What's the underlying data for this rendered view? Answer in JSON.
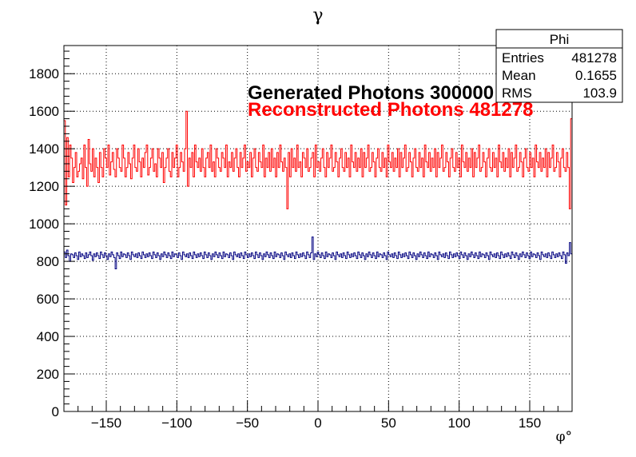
{
  "chart_data": {
    "type": "histogram",
    "title": "γ",
    "xlabel": "φ°",
    "ylabel": "",
    "xlim": [
      -180,
      180
    ],
    "ylim": [
      0,
      1950
    ],
    "xticks": [
      -150,
      -100,
      -50,
      0,
      50,
      100,
      150
    ],
    "yticks": [
      0,
      200,
      400,
      600,
      800,
      1000,
      1200,
      1400,
      1600,
      1800
    ],
    "grid": true,
    "series": [
      {
        "name": "Reconstructed Photons 481278",
        "color": "#ff0000",
        "bin_range": [
          -180,
          180
        ],
        "values": [
          1550,
          1100,
          1460,
          1250,
          1420,
          1350,
          1220,
          1300,
          1380,
          1250,
          1280,
          1320,
          1350,
          1240,
          1420,
          1300,
          1200,
          1450,
          1320,
          1280,
          1400,
          1250,
          1350,
          1300,
          1220,
          1380,
          1300,
          1250,
          1400,
          1350,
          1300,
          1420,
          1260,
          1330,
          1380,
          1290,
          1250,
          1400,
          1350,
          1300,
          1280,
          1420,
          1350,
          1250,
          1300,
          1380,
          1320,
          1240,
          1350,
          1420,
          1300,
          1280,
          1400,
          1330,
          1250,
          1350,
          1300,
          1380,
          1420,
          1260,
          1300,
          1350,
          1400,
          1280,
          1320,
          1250,
          1400,
          1350,
          1300,
          1380,
          1220,
          1300,
          1350,
          1400,
          1280,
          1250,
          1380,
          1300,
          1350,
          1420,
          1250,
          1300,
          1380,
          1330,
          1280,
          1400,
          1600,
          1200,
          1350,
          1300,
          1380,
          1250,
          1420,
          1330,
          1300,
          1350,
          1280,
          1400,
          1300,
          1250,
          1350,
          1380,
          1300,
          1420,
          1280,
          1330,
          1250,
          1400,
          1350,
          1300,
          1280,
          1380,
          1350,
          1300,
          1420,
          1250,
          1330,
          1300,
          1380,
          1280,
          1350,
          1400,
          1300,
          1250,
          1380,
          1300,
          1350,
          1420,
          1280,
          1330,
          1300,
          1380,
          1250,
          1350,
          1400,
          1300,
          1280,
          1380,
          1330,
          1300,
          1420,
          1250,
          1350,
          1300,
          1380,
          1280,
          1400,
          1300,
          1350,
          1250,
          1380,
          1300,
          1420,
          1330,
          1280,
          1350,
          1300,
          1080,
          1380,
          1250,
          1400,
          1300,
          1350,
          1280,
          1420,
          1300,
          1330,
          1250,
          1380,
          1350,
          1300,
          1400,
          1280,
          1300,
          1350,
          1380,
          1250,
          1420,
          1300,
          1330,
          1280,
          1350,
          1400,
          1300,
          1250,
          1380,
          1300,
          1350,
          1420,
          1280,
          1300,
          1380,
          1330,
          1250,
          1350,
          1400,
          1300,
          1280,
          1380,
          1300,
          1350,
          1250,
          1420,
          1330,
          1300,
          1380,
          1280,
          1350,
          1300,
          1400,
          1250,
          1380,
          1300,
          1350,
          1420,
          1280,
          1300,
          1380,
          1330,
          1250,
          1350,
          1400,
          1300,
          1280,
          1380,
          1300,
          1350,
          1250,
          1420,
          1330,
          1300,
          1380,
          1280,
          1350,
          1300,
          1400,
          1250,
          1380,
          1300,
          1350,
          1420,
          1280,
          1300,
          1380,
          1330,
          1250,
          1350,
          1400,
          1300,
          1280,
          1380,
          1300,
          1350,
          1250,
          1420,
          1330,
          1300,
          1380,
          1280,
          1350,
          1300,
          1400,
          1250,
          1380,
          1300,
          1350,
          1420,
          1280,
          1300,
          1380,
          1330,
          1250,
          1350,
          1400,
          1300,
          1280,
          1380,
          1300,
          1350,
          1250,
          1420,
          1330,
          1300,
          1380,
          1280,
          1350,
          1300,
          1400,
          1250,
          1380,
          1300,
          1350,
          1420,
          1280,
          1300,
          1380,
          1330,
          1250,
          1350,
          1400,
          1300,
          1280,
          1380,
          1300,
          1350,
          1250,
          1420,
          1330,
          1300,
          1380,
          1280,
          1350,
          1300,
          1400,
          1250,
          1380,
          1300,
          1350,
          1420,
          1280,
          1300,
          1380,
          1330,
          1250,
          1350,
          1400,
          1300,
          1280,
          1380,
          1300,
          1350,
          1250,
          1420,
          1330,
          1300,
          1380,
          1280,
          1350,
          1300,
          1400,
          1250,
          1380,
          1300,
          1350,
          1420,
          1280,
          1300,
          1380,
          1330,
          1250,
          1350,
          1400,
          1300,
          1280,
          1380,
          1300,
          1080,
          1560
        ]
      },
      {
        "name": "Generated Photons 300000",
        "color": "#000080",
        "bin_range": [
          -180,
          180
        ],
        "values": [
          850,
          820,
          860,
          830,
          800,
          840,
          835,
          820,
          845,
          830,
          810,
          850,
          825,
          840,
          830,
          815,
          845,
          820,
          835,
          850,
          830,
          805,
          840,
          825,
          845,
          830,
          815,
          850,
          835,
          820,
          845,
          830,
          810,
          840,
          825,
          850,
          835,
          820,
          760,
          845,
          830,
          815,
          850,
          825,
          840,
          835,
          820,
          845,
          830,
          810,
          850,
          835,
          825,
          840,
          820,
          845,
          830,
          815,
          850,
          835,
          820,
          840,
          825,
          845,
          830,
          815,
          850,
          835,
          820,
          845,
          830,
          810,
          840,
          825,
          850,
          835,
          820,
          845,
          830,
          815,
          850,
          825,
          840,
          835,
          820,
          845,
          830,
          810,
          850,
          835,
          825,
          840,
          820,
          845,
          830,
          815,
          850,
          835,
          820,
          840,
          825,
          845,
          830,
          815,
          850,
          835,
          820,
          845,
          830,
          810,
          840,
          825,
          850,
          835,
          820,
          845,
          830,
          815,
          850,
          825,
          840,
          835,
          820,
          845,
          830,
          810,
          850,
          835,
          825,
          840,
          820,
          845,
          830,
          815,
          850,
          835,
          820,
          840,
          825,
          845,
          830,
          815,
          850,
          835,
          820,
          845,
          830,
          810,
          840,
          825,
          850,
          835,
          820,
          845,
          830,
          815,
          850,
          825,
          840,
          835,
          820,
          845,
          830,
          810,
          850,
          835,
          825,
          840,
          820,
          845,
          830,
          815,
          850,
          835,
          820,
          840,
          825,
          845,
          830,
          815,
          850,
          835,
          820,
          845,
          930,
          810,
          840,
          825,
          850,
          835,
          820,
          845,
          830,
          815,
          850,
          825,
          840,
          835,
          820,
          845,
          830,
          810,
          850,
          835,
          825,
          840,
          820,
          845,
          830,
          815,
          850,
          835,
          820,
          840,
          825,
          845,
          830,
          815,
          850,
          835,
          820,
          845,
          830,
          810,
          840,
          825,
          850,
          835,
          820,
          845,
          830,
          815,
          850,
          825,
          840,
          835,
          820,
          845,
          830,
          810,
          850,
          835,
          825,
          840,
          820,
          845,
          830,
          815,
          850,
          835,
          820,
          840,
          825,
          845,
          830,
          815,
          850,
          835,
          820,
          845,
          830,
          810,
          840,
          825,
          850,
          835,
          820,
          845,
          830,
          815,
          850,
          825,
          840,
          835,
          820,
          845,
          830,
          810,
          850,
          835,
          825,
          840,
          820,
          845,
          830,
          815,
          850,
          835,
          820,
          840,
          825,
          845,
          830,
          815,
          850,
          835,
          820,
          845,
          830,
          810,
          840,
          825,
          850,
          835,
          820,
          845,
          830,
          815,
          850,
          825,
          840,
          835,
          820,
          845,
          830,
          810,
          850,
          835,
          825,
          840,
          820,
          845,
          830,
          815,
          850,
          835,
          820,
          840,
          825,
          845,
          830,
          815,
          850,
          835,
          820,
          845,
          830,
          810,
          840,
          825,
          850,
          835,
          820,
          845,
          830,
          815,
          850,
          825,
          840,
          835,
          820,
          845,
          830,
          810,
          850,
          835,
          825,
          840,
          820,
          845,
          830,
          815,
          850,
          835,
          820,
          840,
          825,
          845,
          830,
          815,
          850,
          835,
          790,
          845,
          830,
          900,
          840
        ]
      }
    ],
    "annotations": [
      {
        "text": "Generated Photons 300000",
        "color": "#000000"
      },
      {
        "text": "Reconstructed Photons 481278",
        "color": "#ff0000"
      }
    ],
    "stats_box": {
      "title": "Phi",
      "rows": [
        {
          "label": "Entries",
          "value": "481278"
        },
        {
          "label": "Mean",
          "value": "0.1655"
        },
        {
          "label": "RMS",
          "value": "103.9"
        }
      ]
    }
  }
}
